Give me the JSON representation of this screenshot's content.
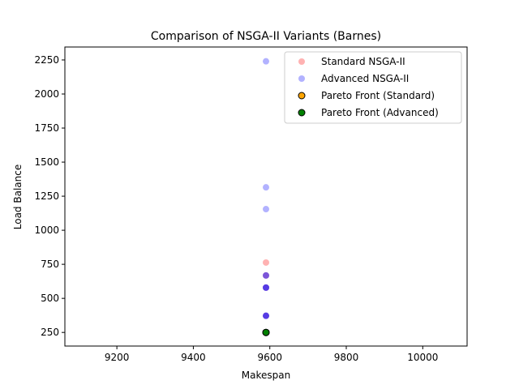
{
  "chart_data": {
    "type": "scatter",
    "title": "Comparison of NSGA-II Variants (Barnes)",
    "xlabel": "Makespan",
    "ylabel": "Load Balance",
    "xlim": [
      9064,
      10116
    ],
    "ylim": [
      150,
      2345
    ],
    "xticks": [
      9200,
      9400,
      9600,
      9800,
      10000
    ],
    "yticks": [
      250,
      500,
      750,
      1000,
      1250,
      1500,
      1750,
      2000,
      2250
    ],
    "legend_position": "upper-right",
    "grid": false,
    "series": [
      {
        "name": "Standard NSGA-II",
        "color": "#ff0000",
        "alpha": 0.3,
        "edge": false,
        "points": [
          {
            "x": 9590,
            "y": 763
          },
          {
            "x": 9590,
            "y": 668
          },
          {
            "x": 9590,
            "y": 579
          },
          {
            "x": 9590,
            "y": 372
          },
          {
            "x": 9590,
            "y": 250
          }
        ]
      },
      {
        "name": "Advanced NSGA-II",
        "color": "#0000ff",
        "alpha": 0.3,
        "edge": false,
        "points": [
          {
            "x": 9590,
            "y": 2240
          },
          {
            "x": 9590,
            "y": 1315
          },
          {
            "x": 9590,
            "y": 1155
          },
          {
            "x": 9590,
            "y": 668
          },
          {
            "x": 9590,
            "y": 668
          },
          {
            "x": 9590,
            "y": 579
          },
          {
            "x": 9590,
            "y": 579
          },
          {
            "x": 9590,
            "y": 579
          },
          {
            "x": 9590,
            "y": 372
          },
          {
            "x": 9590,
            "y": 372
          },
          {
            "x": 9590,
            "y": 372
          },
          {
            "x": 9590,
            "y": 250
          }
        ]
      },
      {
        "name": "Pareto Front (Standard)",
        "color": "#ffa500",
        "alpha": 1,
        "edge": true,
        "points": [
          {
            "x": 9590,
            "y": 250
          }
        ]
      },
      {
        "name": "Pareto Front (Advanced)",
        "color": "#008000",
        "alpha": 1,
        "edge": true,
        "points": [
          {
            "x": 9590,
            "y": 250
          }
        ]
      }
    ]
  }
}
